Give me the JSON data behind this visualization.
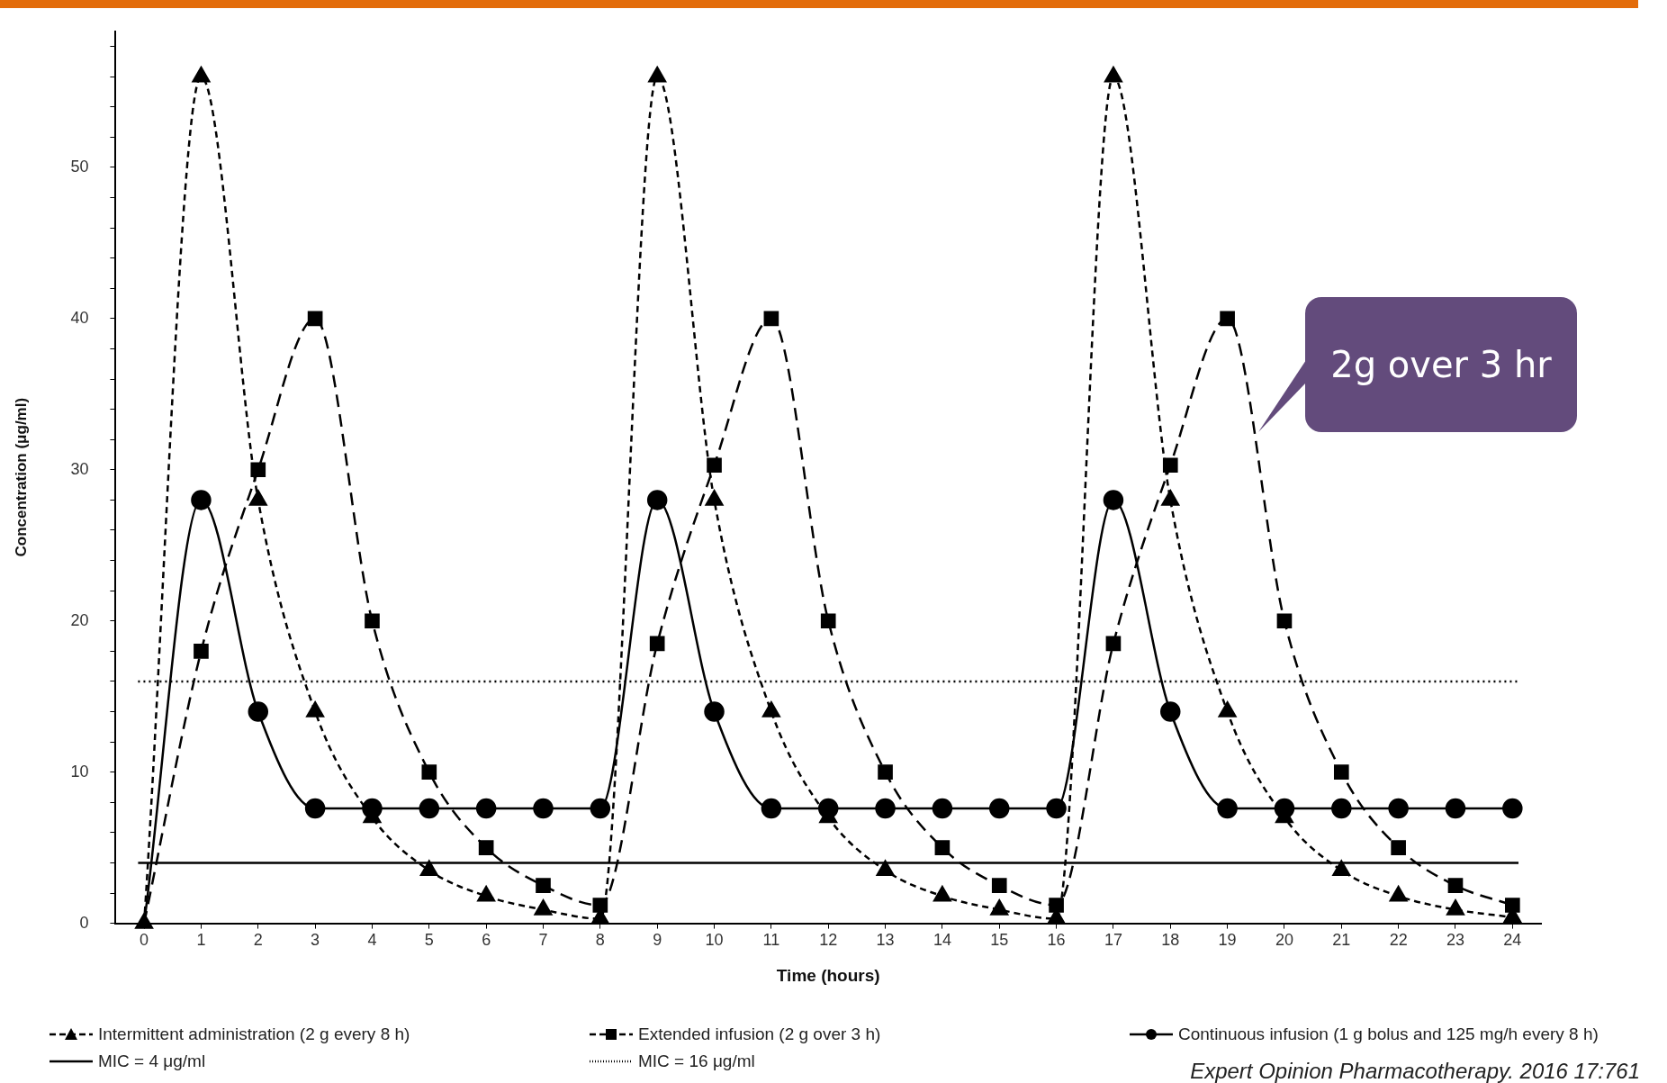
{
  "chart_data": {
    "type": "line",
    "xlabel": "Time (hours)",
    "ylabel": "Concentration (μg/ml)",
    "xlim": [
      -0.5,
      24.5
    ],
    "ylim": [
      0,
      59
    ],
    "xticks": [
      0,
      1,
      2,
      3,
      4,
      5,
      6,
      7,
      8,
      9,
      10,
      11,
      12,
      13,
      14,
      15,
      16,
      17,
      18,
      19,
      20,
      21,
      22,
      23,
      24
    ],
    "yticks": [
      0,
      {
        "value": 2,
        "label": null
      },
      {
        "value": 4,
        "label": null
      },
      {
        "value": 6,
        "label": null
      },
      {
        "value": 8,
        "label": null
      },
      10,
      {
        "value": 12,
        "label": null
      },
      {
        "value": 14,
        "label": null
      },
      {
        "value": 16,
        "label": null
      },
      {
        "value": 18,
        "label": null
      },
      20,
      {
        "value": 22,
        "label": null
      },
      {
        "value": 24,
        "label": null
      },
      {
        "value": 26,
        "label": null
      },
      {
        "value": 28,
        "label": null
      },
      30,
      {
        "value": 32,
        "label": null
      },
      {
        "value": 34,
        "label": null
      },
      {
        "value": 36,
        "label": null
      },
      {
        "value": 38,
        "label": null
      },
      40,
      {
        "value": 42,
        "label": null
      },
      {
        "value": 44,
        "label": null
      },
      {
        "value": 46,
        "label": null
      },
      {
        "value": 48,
        "label": null
      },
      50,
      {
        "value": 52,
        "label": null
      },
      {
        "value": 54,
        "label": null
      },
      {
        "value": 56,
        "label": null
      },
      {
        "value": 58,
        "label": null
      }
    ],
    "x": [
      0,
      1,
      2,
      3,
      4,
      5,
      6,
      7,
      8,
      9,
      10,
      11,
      12,
      13,
      14,
      15,
      16,
      17,
      18,
      19,
      20,
      21,
      22,
      23,
      24
    ],
    "legend": "bottom",
    "series": [
      {
        "name": "Intermittent administration (2 g every 8 h)",
        "color": "#000000",
        "marker": "triangle",
        "line_style": "dashed",
        "values": [
          0,
          56,
          28,
          14,
          7,
          3.5,
          1.8,
          0.9,
          0.3,
          56,
          28,
          14,
          7,
          3.5,
          1.8,
          0.9,
          0.3,
          56,
          28,
          14,
          7,
          3.5,
          1.8,
          0.9,
          0.4
        ]
      },
      {
        "name": "Extended infusion (2 g over 3 h)",
        "color": "#000000",
        "marker": "square",
        "line_style": "dashed",
        "values": [
          0,
          18,
          30,
          40,
          20,
          10,
          5,
          2.5,
          1.2,
          18.5,
          30.3,
          40,
          20,
          10,
          5,
          2.5,
          1.2,
          18.5,
          30.3,
          40,
          20,
          10,
          5,
          2.5,
          1.2
        ]
      },
      {
        "name": "Continuous infusion (1 g bolus and 125 mg/h every 8 h)",
        "color": "#000000",
        "marker": "circle",
        "line_style": "solid",
        "values": [
          0,
          28,
          14,
          7.6,
          7.6,
          7.6,
          7.6,
          7.6,
          7.6,
          28,
          14,
          7.6,
          7.6,
          7.6,
          7.6,
          7.6,
          7.6,
          28,
          14,
          7.6,
          7.6,
          7.6,
          7.6,
          7.6,
          7.6
        ]
      }
    ],
    "ref_lines": [
      {
        "axis": "y",
        "value": 4,
        "label": "MIC = 4 μg/ml",
        "color": "#000000",
        "line_style": "solid"
      },
      {
        "axis": "y",
        "value": 16,
        "label": "MIC = 16 μg/ml",
        "color": "#000000",
        "line_style": "dotted"
      }
    ],
    "annotations": [
      {
        "text": "2g over 3 hr",
        "x": 19.55,
        "y": 32.5
      },
      "Expert Opinion Pharmacotherapy. 2016 17:761"
    ]
  }
}
